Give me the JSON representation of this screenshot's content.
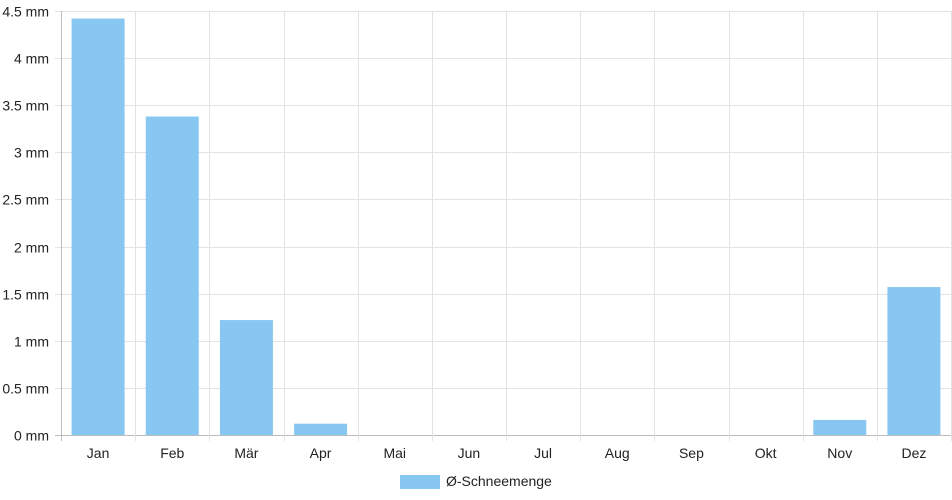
{
  "chart_data": {
    "type": "bar",
    "categories": [
      "Jan",
      "Feb",
      "Mär",
      "Apr",
      "Mai",
      "Jun",
      "Jul",
      "Aug",
      "Sep",
      "Okt",
      "Nov",
      "Dez"
    ],
    "series": [
      {
        "name": "Ø-Schneemenge",
        "values": [
          4.42,
          3.38,
          1.22,
          0.12,
          0,
          0,
          0,
          0,
          0,
          0,
          0.16,
          1.57
        ],
        "color": "#88c7f2"
      }
    ],
    "ylim": [
      0,
      4.5
    ],
    "yticks": [
      0,
      0.5,
      1,
      1.5,
      2,
      2.5,
      3,
      3.5,
      4,
      4.5
    ],
    "ytick_labels": [
      "0 mm",
      "0.5 mm",
      "1 mm",
      "1.5 mm",
      "2 mm",
      "2.5 mm",
      "3 mm",
      "3.5 mm",
      "4 mm",
      "4.5 mm"
    ],
    "grid": true,
    "legend_position": "bottom"
  }
}
